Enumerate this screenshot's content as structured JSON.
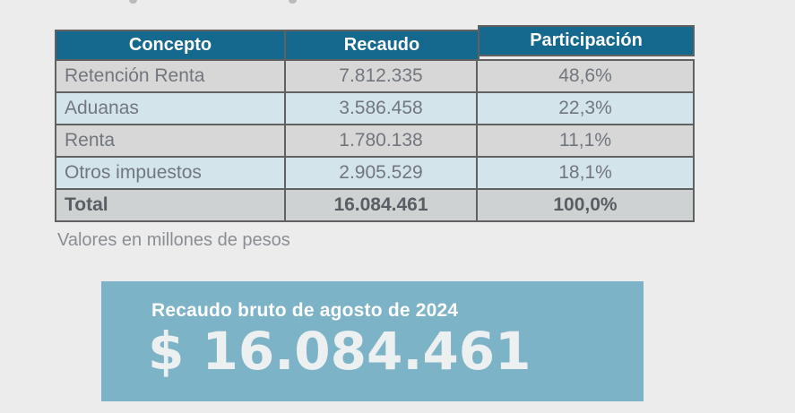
{
  "table": {
    "columns": [
      "Concepto",
      "Recaudo",
      "Participación"
    ],
    "rows": [
      {
        "concepto": "Retención Renta",
        "recaudo": "7.812.335",
        "participacion": "48,6%"
      },
      {
        "concepto": "Aduanas",
        "recaudo": "3.586.458",
        "participacion": "22,3%"
      },
      {
        "concepto": "Renta",
        "recaudo": "1.780.138",
        "participacion": "11,1%"
      },
      {
        "concepto": "Otros impuestos",
        "recaudo": "2.905.529",
        "participacion": "18,1%"
      }
    ],
    "total": {
      "concepto": "Total",
      "recaudo": "16.084.461",
      "participacion": "100,0%"
    },
    "colors": {
      "header_bg": "#15698e",
      "row_gray": "#d7d7d7",
      "row_blue": "#d3e4ea",
      "total_bg": "#ced2d3",
      "border": "#616161",
      "text": "#72777d"
    }
  },
  "note": "Valores en millones de pesos",
  "kpi_box": {
    "title": "Recaudo bruto de agosto de 2024",
    "amount": "$ 16.084.461",
    "bg": "#7db3c7"
  },
  "chart_data": {
    "type": "table",
    "title": "Recaudo bruto de agosto de 2024",
    "columns": [
      "Concepto",
      "Recaudo",
      "Participación"
    ],
    "rows": [
      [
        "Retención Renta",
        "7.812.335",
        "48,6%"
      ],
      [
        "Aduanas",
        "3.586.458",
        "22,3%"
      ],
      [
        "Renta",
        "1.780.138",
        "11,1%"
      ],
      [
        "Otros impuestos",
        "2.905.529",
        "18,1%"
      ],
      [
        "Total",
        "16.084.461",
        "100,0%"
      ]
    ],
    "values_numeric": [
      7812335,
      3586458,
      1780138,
      2905529
    ],
    "participation_pct": [
      48.6,
      22.3,
      11.1,
      18.1
    ],
    "total_value": 16084461,
    "units_note": "Valores en millones de pesos",
    "kpi_value": "$ 16.084.461"
  }
}
